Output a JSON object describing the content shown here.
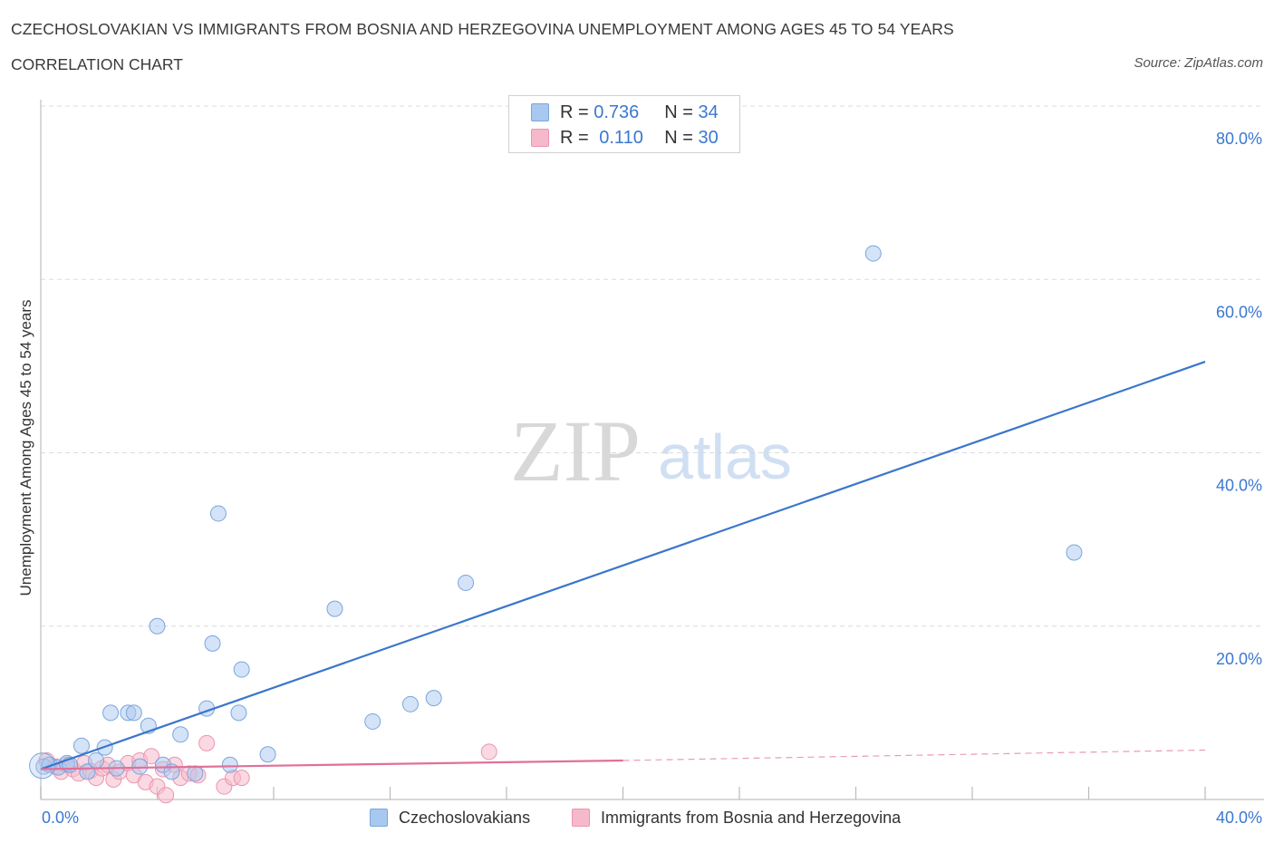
{
  "header": {
    "title": "CZECHOSLOVAKIAN VS IMMIGRANTS FROM BOSNIA AND HERZEGOVINA UNEMPLOYMENT AMONG AGES 45 TO 54 YEARS",
    "subtitle": "CORRELATION CHART",
    "source": "Source: ZipAtlas.com"
  },
  "watermark": {
    "zip": "ZIP",
    "atlas": "atlas"
  },
  "stats_legend": {
    "series1": {
      "r_label": "R =",
      "r_value": "0.736",
      "n_label": "N =",
      "n_value": "34"
    },
    "series2": {
      "r_label": "R =",
      "r_value": "0.110",
      "n_label": "N =",
      "n_value": "30"
    }
  },
  "colors": {
    "blue_fill": "#a9c8ef",
    "blue_stroke": "#7aa6dd",
    "blue_line": "#3a76cc",
    "pink_fill": "#f5b9cb",
    "pink_stroke": "#ec95b0",
    "pink_line": "#e0709a",
    "axis_text": "#3b78d0"
  },
  "chart_data": {
    "type": "scatter",
    "title": "CZECHOSLOVAKIAN VS IMMIGRANTS FROM BOSNIA AND HERZEGOVINA UNEMPLOYMENT AMONG AGES 45 TO 54 YEARS",
    "xlabel": "",
    "ylabel": "Unemployment Among Ages 45 to 54 years",
    "xlim": [
      0,
      40
    ],
    "ylim": [
      0,
      80
    ],
    "x_tick_labels": [
      "0.0%",
      "40.0%"
    ],
    "y_ticks": [
      20,
      40,
      60,
      80
    ],
    "y_tick_labels": [
      "20.0%",
      "40.0%",
      "60.0%",
      "80.0%"
    ],
    "grid": true,
    "legend_position": "bottom",
    "series": [
      {
        "name": "Czechoslovakians",
        "color": "#a9c8ef",
        "points": [
          [
            0.1,
            3.8
          ],
          [
            0.3,
            4.0
          ],
          [
            0.6,
            3.7
          ],
          [
            0.9,
            4.2
          ],
          [
            1.0,
            4.0
          ],
          [
            1.4,
            6.2
          ],
          [
            1.6,
            3.2
          ],
          [
            1.9,
            4.5
          ],
          [
            2.2,
            6.0
          ],
          [
            2.4,
            10.0
          ],
          [
            2.6,
            3.6
          ],
          [
            3.0,
            10.0
          ],
          [
            3.2,
            10.0
          ],
          [
            3.4,
            3.8
          ],
          [
            3.7,
            8.5
          ],
          [
            4.0,
            20.0
          ],
          [
            4.2,
            4.0
          ],
          [
            4.5,
            3.2
          ],
          [
            4.8,
            7.5
          ],
          [
            5.3,
            3.0
          ],
          [
            5.7,
            10.5
          ],
          [
            5.9,
            18.0
          ],
          [
            6.1,
            33.0
          ],
          [
            6.5,
            4.0
          ],
          [
            6.8,
            10.0
          ],
          [
            6.9,
            15.0
          ],
          [
            7.8,
            5.2
          ],
          [
            10.1,
            22.0
          ],
          [
            11.4,
            9.0
          ],
          [
            12.7,
            11.0
          ],
          [
            13.5,
            11.7
          ],
          [
            14.6,
            25.0
          ],
          [
            28.6,
            63.0
          ],
          [
            35.5,
            28.5
          ]
        ]
      },
      {
        "name": "Immigrants from Bosnia and Herzegovina",
        "color": "#f5b9cb",
        "points": [
          [
            0.2,
            4.5
          ],
          [
            0.5,
            3.8
          ],
          [
            0.7,
            3.2
          ],
          [
            0.9,
            4.0
          ],
          [
            1.1,
            3.5
          ],
          [
            1.3,
            3.0
          ],
          [
            1.5,
            4.2
          ],
          [
            1.7,
            3.3
          ],
          [
            1.9,
            2.5
          ],
          [
            2.1,
            3.6
          ],
          [
            2.3,
            4.0
          ],
          [
            2.5,
            2.3
          ],
          [
            2.7,
            3.2
          ],
          [
            3.0,
            4.2
          ],
          [
            3.2,
            2.8
          ],
          [
            3.4,
            4.5
          ],
          [
            3.6,
            2.0
          ],
          [
            3.8,
            5.0
          ],
          [
            4.0,
            1.5
          ],
          [
            4.2,
            3.5
          ],
          [
            4.3,
            0.5
          ],
          [
            4.6,
            4.0
          ],
          [
            4.8,
            2.5
          ],
          [
            5.1,
            3.0
          ],
          [
            5.4,
            2.8
          ],
          [
            5.7,
            6.5
          ],
          [
            6.3,
            1.5
          ],
          [
            6.6,
            2.5
          ],
          [
            6.9,
            2.5
          ],
          [
            15.4,
            5.5
          ]
        ]
      }
    ],
    "trendlines": [
      {
        "series": "Czechoslovakians",
        "x": [
          0,
          40
        ],
        "y": [
          3.5,
          50.5
        ],
        "style": "solid"
      },
      {
        "series": "Immigrants from Bosnia and Herzegovina",
        "x": [
          0,
          20
        ],
        "y": [
          3.5,
          4.5
        ],
        "style": "solid"
      },
      {
        "series": "Immigrants from Bosnia and Herzegovina",
        "x": [
          20,
          40
        ],
        "y": [
          4.5,
          5.7
        ],
        "style": "dashed"
      }
    ]
  }
}
